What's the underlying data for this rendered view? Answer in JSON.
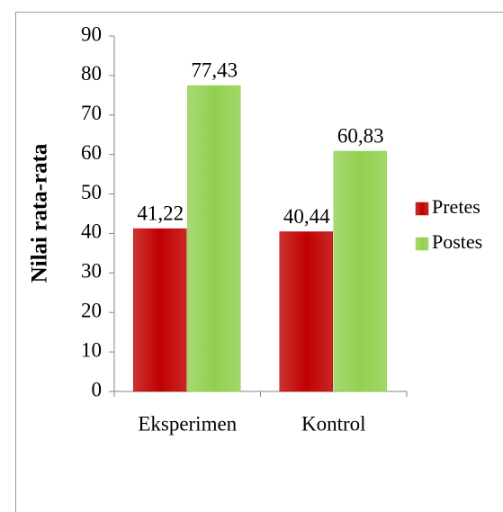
{
  "chart_data": {
    "type": "bar",
    "y_label": "Nilai rata-rata",
    "categories": [
      "Eksperimen",
      "Kontrol"
    ],
    "series": [
      {
        "name": "Pretes",
        "color": "#c00000",
        "values": [
          41.22,
          40.44
        ],
        "value_labels": [
          "41,22",
          "40,44"
        ]
      },
      {
        "name": "Postes",
        "color": "#92d050",
        "values": [
          77.43,
          60.83
        ],
        "value_labels": [
          "77,43",
          "60,83"
        ]
      }
    ],
    "ylim": [
      0,
      90
    ],
    "yticks": [
      0,
      10,
      20,
      30,
      40,
      50,
      60,
      70,
      80,
      90
    ],
    "legend": "right"
  }
}
